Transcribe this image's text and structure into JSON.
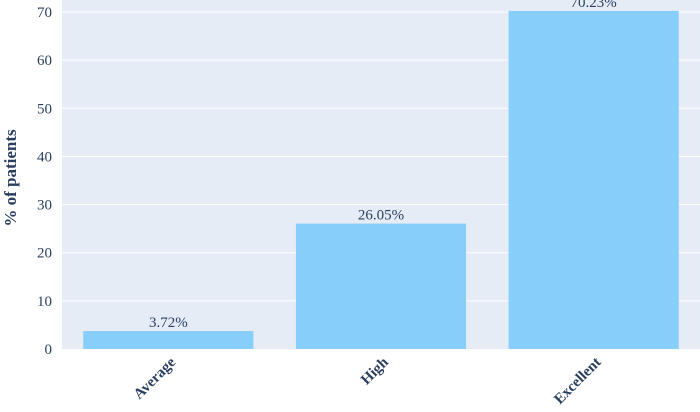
{
  "chart_data": {
    "type": "bar",
    "categories": [
      "Average",
      "High",
      "Excellent"
    ],
    "values": [
      3.72,
      26.05,
      70.23
    ],
    "data_labels": [
      "3.72%",
      "26.05%",
      "70.23%"
    ],
    "xlabel": "",
    "ylabel": "% of patients",
    "ylim": [
      0,
      72.5
    ],
    "yticks": [
      0,
      10,
      20,
      30,
      40,
      50,
      60,
      70
    ],
    "grid": true,
    "legend": "none",
    "colors": {
      "bar": "#87cefa",
      "plot_bg": "#e5ecf6",
      "grid": "#ffffff",
      "text": "#2a3f5f"
    }
  }
}
